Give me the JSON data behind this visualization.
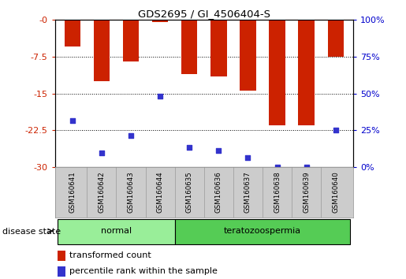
{
  "title": "GDS2695 / GI_4506404-S",
  "samples": [
    "GSM160641",
    "GSM160642",
    "GSM160643",
    "GSM160644",
    "GSM160635",
    "GSM160636",
    "GSM160637",
    "GSM160638",
    "GSM160639",
    "GSM160640"
  ],
  "bar_values": [
    -5.5,
    -12.5,
    -8.5,
    -0.5,
    -11.0,
    -11.5,
    -14.5,
    -21.5,
    -21.5,
    -7.5
  ],
  "blue_dot_values": [
    -20.5,
    -27.0,
    -23.5,
    -15.5,
    -26.0,
    -26.5,
    -28.0,
    -30.0,
    -30.0,
    -22.5
  ],
  "bar_color": "#cc2200",
  "dot_color": "#3333cc",
  "ylim": [
    -30,
    0
  ],
  "yticks_left": [
    0,
    -7.5,
    -15,
    -22.5,
    -30
  ],
  "yticks_right_vals": [
    100,
    75,
    50,
    25,
    0
  ],
  "bar_width": 0.55,
  "background_color": "#ffffff",
  "tick_label_color_left": "#cc2200",
  "tick_label_color_right": "#0000cc",
  "label_bg_color": "#cccccc",
  "normal_color": "#99ee99",
  "terato_color": "#55cc55",
  "group_border_color": "#000000",
  "legend_red_label": "transformed count",
  "legend_blue_label": "percentile rank within the sample",
  "disease_label": "disease state"
}
